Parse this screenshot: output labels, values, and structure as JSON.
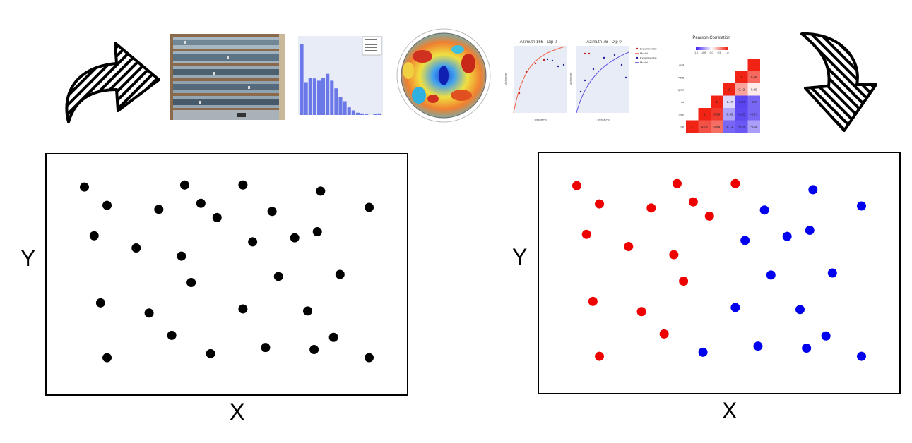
{
  "left_plot": {
    "xlabel": "X",
    "ylabel": "Y",
    "point_color": "#000000",
    "points": [
      [
        0.06,
        0.93
      ],
      [
        0.37,
        0.94
      ],
      [
        0.55,
        0.94
      ],
      [
        0.79,
        0.91
      ],
      [
        0.13,
        0.84
      ],
      [
        0.29,
        0.82
      ],
      [
        0.42,
        0.85
      ],
      [
        0.64,
        0.81
      ],
      [
        0.94,
        0.83
      ],
      [
        0.47,
        0.78
      ],
      [
        0.09,
        0.69
      ],
      [
        0.22,
        0.63
      ],
      [
        0.36,
        0.59
      ],
      [
        0.58,
        0.66
      ],
      [
        0.71,
        0.68
      ],
      [
        0.78,
        0.71
      ],
      [
        0.39,
        0.46
      ],
      [
        0.66,
        0.49
      ],
      [
        0.85,
        0.5
      ],
      [
        0.11,
        0.36
      ],
      [
        0.26,
        0.31
      ],
      [
        0.55,
        0.33
      ],
      [
        0.75,
        0.32
      ],
      [
        0.33,
        0.2
      ],
      [
        0.83,
        0.19
      ],
      [
        0.62,
        0.14
      ],
      [
        0.45,
        0.11
      ],
      [
        0.77,
        0.13
      ],
      [
        0.13,
        0.09
      ],
      [
        0.94,
        0.09
      ]
    ]
  },
  "right_plot": {
    "xlabel": "X",
    "ylabel": "Y",
    "class_colors": {
      "red": "#ee0000",
      "blue": "#0000ee"
    },
    "points": [
      {
        "x": 0.06,
        "y": 0.93,
        "c": "red"
      },
      {
        "x": 0.37,
        "y": 0.94,
        "c": "red"
      },
      {
        "x": 0.55,
        "y": 0.94,
        "c": "red"
      },
      {
        "x": 0.79,
        "y": 0.91,
        "c": "blue"
      },
      {
        "x": 0.13,
        "y": 0.84,
        "c": "red"
      },
      {
        "x": 0.29,
        "y": 0.82,
        "c": "red"
      },
      {
        "x": 0.42,
        "y": 0.85,
        "c": "red"
      },
      {
        "x": 0.64,
        "y": 0.81,
        "c": "blue"
      },
      {
        "x": 0.94,
        "y": 0.83,
        "c": "blue"
      },
      {
        "x": 0.47,
        "y": 0.78,
        "c": "red"
      },
      {
        "x": 0.09,
        "y": 0.69,
        "c": "red"
      },
      {
        "x": 0.22,
        "y": 0.63,
        "c": "red"
      },
      {
        "x": 0.36,
        "y": 0.59,
        "c": "red"
      },
      {
        "x": 0.58,
        "y": 0.66,
        "c": "blue"
      },
      {
        "x": 0.71,
        "y": 0.68,
        "c": "blue"
      },
      {
        "x": 0.78,
        "y": 0.71,
        "c": "blue"
      },
      {
        "x": 0.39,
        "y": 0.46,
        "c": "red"
      },
      {
        "x": 0.66,
        "y": 0.49,
        "c": "blue"
      },
      {
        "x": 0.85,
        "y": 0.5,
        "c": "blue"
      },
      {
        "x": 0.11,
        "y": 0.36,
        "c": "red"
      },
      {
        "x": 0.26,
        "y": 0.31,
        "c": "red"
      },
      {
        "x": 0.55,
        "y": 0.33,
        "c": "blue"
      },
      {
        "x": 0.75,
        "y": 0.32,
        "c": "blue"
      },
      {
        "x": 0.33,
        "y": 0.2,
        "c": "red"
      },
      {
        "x": 0.83,
        "y": 0.19,
        "c": "blue"
      },
      {
        "x": 0.62,
        "y": 0.14,
        "c": "blue"
      },
      {
        "x": 0.45,
        "y": 0.11,
        "c": "blue"
      },
      {
        "x": 0.77,
        "y": 0.13,
        "c": "blue"
      },
      {
        "x": 0.13,
        "y": 0.09,
        "c": "red"
      },
      {
        "x": 0.94,
        "y": 0.09,
        "c": "blue"
      }
    ]
  },
  "histogram": {
    "bar_color": "#6a78e8",
    "bars": [
      0.93,
      0.43,
      0.49,
      0.48,
      0.45,
      0.49,
      0.54,
      0.45,
      0.35,
      0.24,
      0.18,
      0.1,
      0.06,
      0.03,
      0.02,
      0.01,
      0.0,
      0.01,
      0.02
    ]
  },
  "variogram": {
    "panels": [
      {
        "title": "Azimuth 166 - Dip 0",
        "xlabel": "Distance",
        "ylabel": "Variogram"
      },
      {
        "title": "Azimuth 76 - Dip 0",
        "xlabel": "Distance",
        "ylabel": "Variogram"
      }
    ],
    "legend": [
      "Experimental",
      "Model",
      "Experimental",
      "Model"
    ]
  },
  "heatmap": {
    "title": "Pearson Correlation",
    "colorbar_ticks": [
      "-1.0",
      "-0.5",
      "0.0",
      "0.5",
      "1.0"
    ],
    "labels": [
      "hp",
      "disp",
      "wt",
      "qsec",
      "mpg",
      "drat"
    ],
    "rows": [
      {
        "label": "drat",
        "cells": [
          "",
          "",
          "",
          "",
          "",
          "1"
        ]
      },
      {
        "label": "mpg",
        "cells": [
          "",
          "",
          "",
          "",
          "1",
          "0.68"
        ]
      },
      {
        "label": "qsec",
        "cells": [
          "",
          "",
          "",
          "1",
          "0.42",
          "0.09"
        ]
      },
      {
        "label": "wt",
        "cells": [
          "",
          "",
          "1",
          "-0.17",
          "-0.87",
          "-0.71"
        ]
      },
      {
        "label": "disp",
        "cells": [
          "",
          "1",
          "0.89",
          "-0.43",
          "-0.85",
          "-0.71"
        ]
      },
      {
        "label": "hp",
        "cells": [
          "1",
          "0.79",
          "0.66",
          "-0.71",
          "-0.78",
          "-0.45"
        ]
      }
    ]
  }
}
